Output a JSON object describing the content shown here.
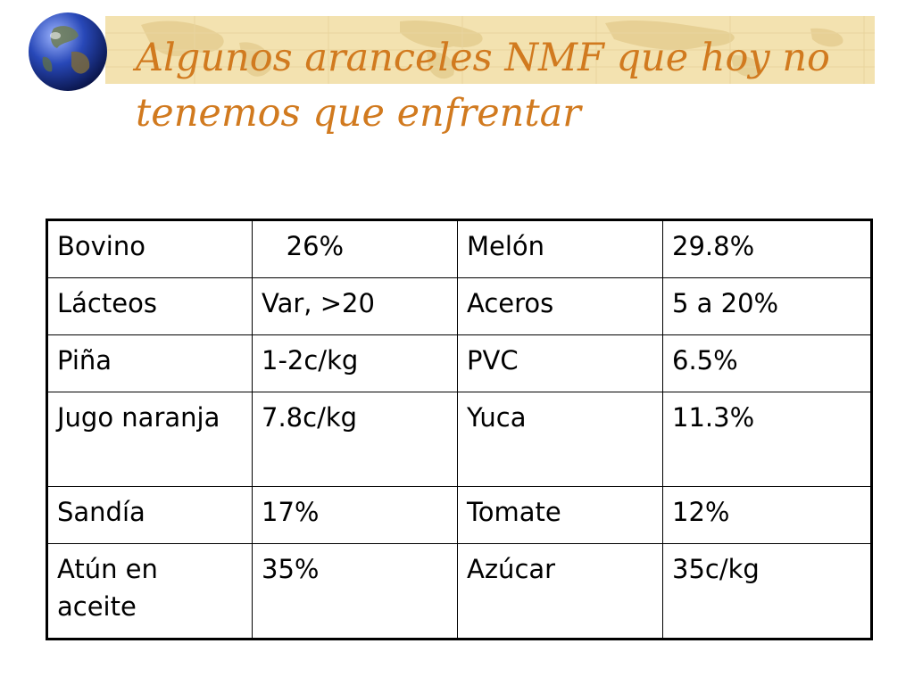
{
  "slide": {
    "title": "Algunos aranceles NMF que hoy no tenemos que enfrentar",
    "globe_icon": "globe-icon",
    "accent_color": "#d17a1f",
    "banner_color": "#f3e2b0"
  },
  "table": {
    "rows": [
      {
        "product_a": "Bovino",
        "tariff_a": "   26%",
        "product_b": "Melón",
        "tariff_b": "29.8%"
      },
      {
        "product_a": "Lácteos",
        "tariff_a": "Var, >20",
        "product_b": "Aceros",
        "tariff_b": "5 a 20%"
      },
      {
        "product_a": "Piña",
        "tariff_a": "1-2c/kg",
        "product_b": "PVC",
        "tariff_b": "6.5%"
      },
      {
        "product_a": "Jugo naranja",
        "tariff_a": "7.8c/kg",
        "product_b": "Yuca",
        "tariff_b": "11.3%"
      },
      {
        "product_a": "Sandía",
        "tariff_a": "17%",
        "product_b": "Tomate",
        "tariff_b": "12%"
      },
      {
        "product_a": "Atún en aceite",
        "tariff_a": "35%",
        "product_b": "Azúcar",
        "tariff_b": "35c/kg"
      }
    ]
  }
}
